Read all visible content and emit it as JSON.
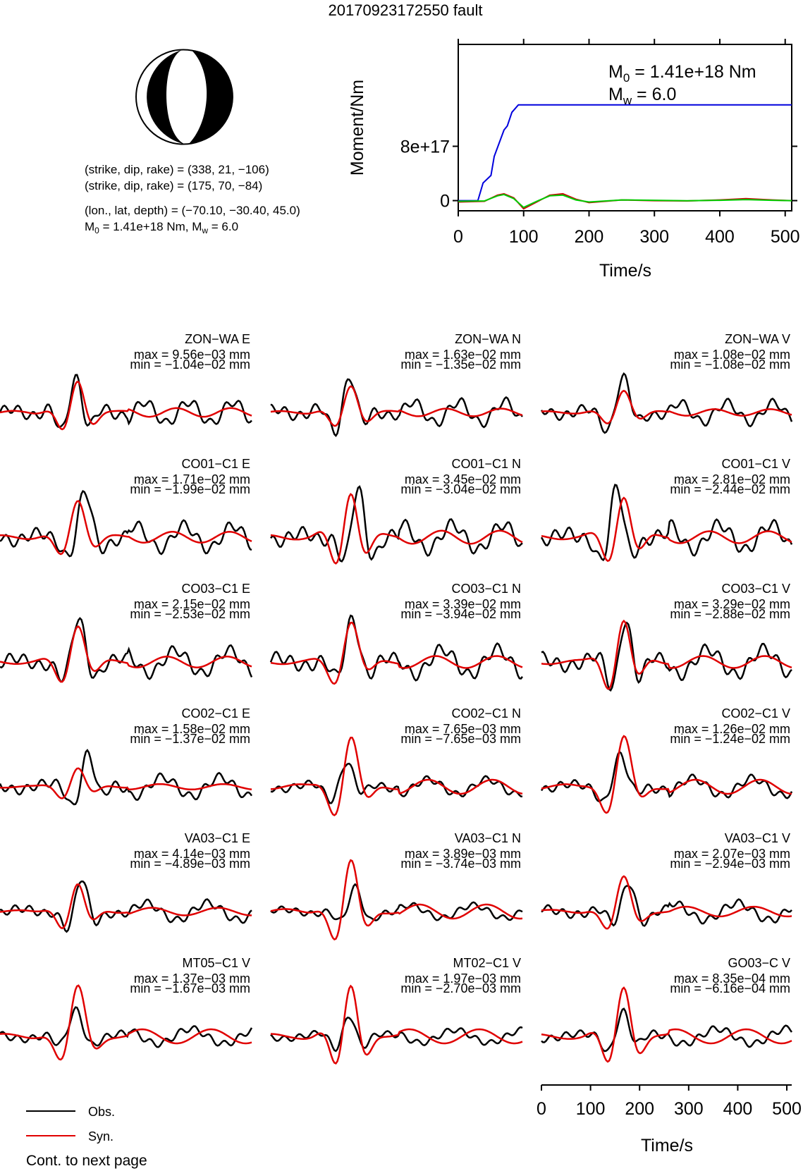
{
  "title": "20170923172550 fault",
  "colors": {
    "obs": "#000000",
    "syn": "#e00000",
    "moment": "#0000dd",
    "stf_green": "#00cc00"
  },
  "mechanism": {
    "strike_dip_rake_1": "(strike, dip, rake) = (338, 21, −106)",
    "strike_dip_rake_2": "(strike, dip, rake) = (175, 70, −84)",
    "location": "(lon., lat, depth) = (−70.10, −30.40, 45.0)",
    "m0_prefix": "M",
    "m0_sub": "0",
    "m0_rest": " = 1.41e+18 Nm, M",
    "mw_sub": "w",
    "mw_rest": " = 6.0"
  },
  "chart_data": [
    {
      "type": "line",
      "ylabel": "Moment/Nm",
      "xlabel": "Time/s",
      "xlim": [
        0,
        510
      ],
      "ylim": [
        -1.5e+17,
        2.3e+18
      ],
      "x_ticks": [
        "0",
        "100",
        "200",
        "300",
        "400",
        "500"
      ],
      "y_ticks": [
        {
          "label": "0",
          "value": 0
        },
        {
          "label": "8e+17",
          "value": 8e+17
        }
      ],
      "annotation_m0": "M",
      "annotation_m0_sub": "0",
      "annotation_m0_rest": " = 1.41e+18 Nm",
      "annotation_mw": "M",
      "annotation_mw_sub": "w",
      "annotation_mw_rest": " = 6.0",
      "series": [
        {
          "color": "#0000dd",
          "x": [
            0,
            30,
            38,
            50,
            55,
            70,
            75,
            82,
            92,
            510
          ],
          "y": [
            0,
            0,
            2.6e+17,
            3.7e+17,
            6.5e+17,
            1.04e+18,
            1.1e+18,
            1.3e+18,
            1.41e+18,
            1.41e+18
          ]
        },
        {
          "color": "#cc0000",
          "x": [
            0,
            40,
            60,
            70,
            85,
            100,
            120,
            140,
            160,
            180,
            200,
            250,
            300,
            350,
            400,
            440,
            480,
            510
          ],
          "y": [
            -2e+16,
            -1e+16,
            8e+16,
            1e+17,
            4e+16,
            -1.2e+17,
            -2e+16,
            8e+16,
            1e+17,
            2e+16,
            -3e+16,
            1e+16,
            0,
            -5000000000000000.0,
            1e+16,
            3e+16,
            1e+16,
            0
          ]
        },
        {
          "color": "#00cc00",
          "x": [
            0,
            40,
            60,
            70,
            85,
            100,
            120,
            140,
            160,
            180,
            200,
            250,
            300,
            350,
            400,
            440,
            480,
            510
          ],
          "y": [
            -1e+16,
            -5000000000000000.0,
            7e+16,
            9e+16,
            3e+16,
            -1e+17,
            -1e+16,
            7e+16,
            8e+16,
            1e+16,
            -2e+16,
            1e+16,
            5000000000000000.0,
            -3000000000000000.0,
            5000000000000000.0,
            1.5e+16,
            5000000000000000.0,
            0
          ]
        }
      ]
    },
    {
      "type": "line",
      "xlabel": "Time/s",
      "xlim": [
        0,
        510
      ],
      "x_ticks": [
        "0",
        "100",
        "200",
        "300",
        "400",
        "500"
      ],
      "traces": [
        {
          "station": "ZON−WA E",
          "max": "max = 9.56e−03 mm",
          "min": "min = −1.04e−02 mm"
        },
        {
          "station": "ZON−WA N",
          "max": "max = 1.63e−02 mm",
          "min": "min = −1.35e−02 mm"
        },
        {
          "station": "ZON−WA V",
          "max": "max = 1.08e−02 mm",
          "min": "min = −1.08e−02 mm"
        },
        {
          "station": "CO01−C1 E",
          "max": "max = 1.71e−02 mm",
          "min": "min = −1.99e−02 mm"
        },
        {
          "station": "CO01−C1 N",
          "max": "max = 3.45e−02 mm",
          "min": "min = −3.04e−02 mm"
        },
        {
          "station": "CO01−C1 V",
          "max": "max = 2.81e−02 mm",
          "min": "min = −2.44e−02 mm"
        },
        {
          "station": "CO03−C1 E",
          "max": "max = 2.15e−02 mm",
          "min": "min = −2.53e−02 mm"
        },
        {
          "station": "CO03−C1 N",
          "max": "max = 3.39e−02 mm",
          "min": "min = −3.94e−02 mm"
        },
        {
          "station": "CO03−C1 V",
          "max": "max = 3.29e−02 mm",
          "min": "min = −2.88e−02 mm"
        },
        {
          "station": "CO02−C1 E",
          "max": "max = 1.58e−02 mm",
          "min": "min = −1.37e−02 mm"
        },
        {
          "station": "CO02−C1 N",
          "max": "max = 7.65e−03 mm",
          "min": "min = −7.65e−03 mm"
        },
        {
          "station": "CO02−C1 V",
          "max": "max = 1.26e−02 mm",
          "min": "min = −1.24e−02 mm"
        },
        {
          "station": "VA03−C1 E",
          "max": "max = 4.14e−03 mm",
          "min": "min = −4.89e−03 mm"
        },
        {
          "station": "VA03−C1 N",
          "max": "max = 3.89e−03 mm",
          "min": "min = −3.74e−03 mm"
        },
        {
          "station": "VA03−C1 V",
          "max": "max = 2.07e−03 mm",
          "min": "min = −2.94e−03 mm"
        },
        {
          "station": "MT05−C1 V",
          "max": "max = 1.37e−03 mm",
          "min": "min = −1.67e−03 mm"
        },
        {
          "station": "MT02−C1 V",
          "max": "max = 1.97e−03 mm",
          "min": "min = −2.70e−03 mm"
        },
        {
          "station": "GO03−C V",
          "max": "max = 8.35e−04 mm",
          "min": "min = −6.16e−04 mm"
        }
      ]
    }
  ],
  "legend": {
    "obs": "Obs.",
    "syn": "Syn."
  },
  "footer": "Cont. to next page"
}
